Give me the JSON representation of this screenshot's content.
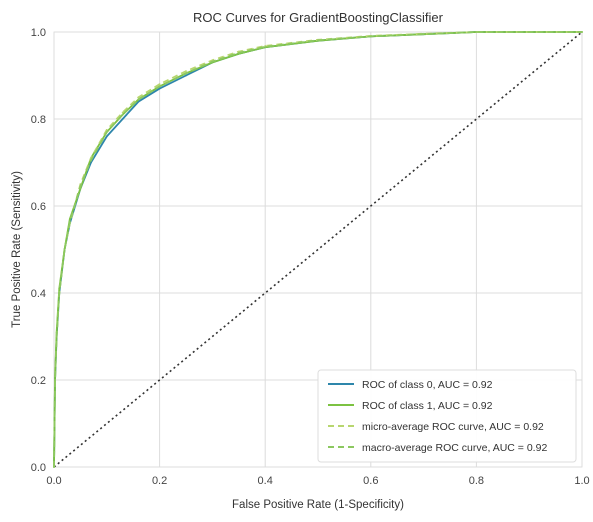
{
  "chart_data": {
    "type": "line",
    "title": "ROC Curves for GradientBoostingClassifier",
    "xlabel": "False Positive Rate (1-Specificity)",
    "ylabel": "True Positive Rate (Sensitivity)",
    "xlim": [
      0,
      1
    ],
    "ylim": [
      0,
      1
    ],
    "xticks": [
      "0.0",
      "0.2",
      "0.4",
      "0.6",
      "0.8",
      "1.0"
    ],
    "yticks": [
      "0.0",
      "0.2",
      "0.4",
      "0.6",
      "0.8",
      "1.0"
    ],
    "grid": true,
    "legend_position": "lower-right",
    "series": [
      {
        "name": "ROC of class 0, AUC = 0.92",
        "color": "#2e86ab",
        "line_style": "solid",
        "x": [
          0,
          0.002,
          0.005,
          0.01,
          0.02,
          0.03,
          0.05,
          0.07,
          0.1,
          0.13,
          0.16,
          0.2,
          0.25,
          0.3,
          0.35,
          0.4,
          0.5,
          0.6,
          0.7,
          0.8,
          0.9,
          1.0
        ],
        "y": [
          0,
          0.2,
          0.3,
          0.4,
          0.5,
          0.56,
          0.64,
          0.7,
          0.76,
          0.8,
          0.84,
          0.87,
          0.9,
          0.93,
          0.95,
          0.965,
          0.98,
          0.99,
          0.995,
          1.0,
          1.0,
          1.0
        ]
      },
      {
        "name": "ROC of class 1, AUC = 0.92",
        "color": "#7cc242",
        "line_style": "solid",
        "x": [
          0,
          0.002,
          0.005,
          0.01,
          0.02,
          0.03,
          0.05,
          0.07,
          0.1,
          0.13,
          0.16,
          0.2,
          0.25,
          0.3,
          0.35,
          0.4,
          0.5,
          0.6,
          0.7,
          0.8,
          0.9,
          1.0
        ],
        "y": [
          0,
          0.21,
          0.31,
          0.41,
          0.5,
          0.57,
          0.64,
          0.71,
          0.77,
          0.81,
          0.845,
          0.875,
          0.905,
          0.93,
          0.95,
          0.965,
          0.98,
          0.99,
          0.995,
          1.0,
          1.0,
          1.0
        ]
      },
      {
        "name": "micro-average ROC curve, AUC = 0.92",
        "color": "#b8d66f",
        "line_style": "dashed",
        "x": [
          0,
          0.002,
          0.005,
          0.01,
          0.02,
          0.03,
          0.05,
          0.07,
          0.1,
          0.13,
          0.16,
          0.2,
          0.25,
          0.3,
          0.35,
          0.4,
          0.5,
          0.6,
          0.7,
          0.8,
          0.9,
          1.0
        ],
        "y": [
          0,
          0.2,
          0.3,
          0.4,
          0.5,
          0.56,
          0.65,
          0.71,
          0.775,
          0.815,
          0.85,
          0.88,
          0.91,
          0.935,
          0.955,
          0.968,
          0.982,
          0.991,
          0.996,
          1.0,
          1.0,
          1.0
        ]
      },
      {
        "name": "macro-average ROC curve, AUC = 0.92",
        "color": "#8cc860",
        "line_style": "dashed",
        "x": [
          0,
          0.002,
          0.005,
          0.01,
          0.02,
          0.03,
          0.05,
          0.07,
          0.1,
          0.13,
          0.16,
          0.2,
          0.25,
          0.3,
          0.35,
          0.4,
          0.5,
          0.6,
          0.7,
          0.8,
          0.9,
          1.0
        ],
        "y": [
          0,
          0.2,
          0.3,
          0.4,
          0.5,
          0.565,
          0.645,
          0.705,
          0.77,
          0.81,
          0.845,
          0.875,
          0.905,
          0.932,
          0.952,
          0.966,
          0.981,
          0.99,
          0.995,
          1.0,
          1.0,
          1.0
        ]
      }
    ],
    "reference_line": {
      "color": "#333333",
      "line_style": "dotted",
      "x": [
        0,
        1
      ],
      "y": [
        0,
        1
      ]
    }
  }
}
